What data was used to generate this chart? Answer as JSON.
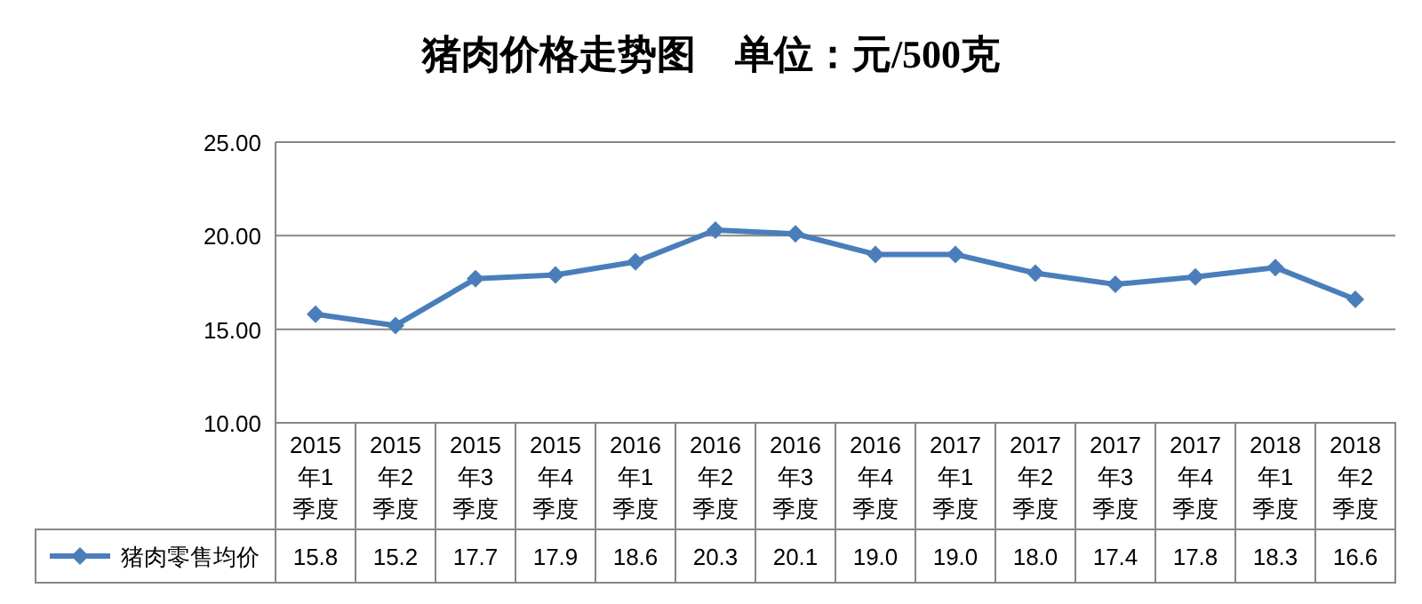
{
  "chart_data": {
    "type": "line",
    "title": "猪肉价格走势图    单位：元/500克",
    "categories": [
      "2015年1季度",
      "2015年2季度",
      "2015年3季度",
      "2015年4季度",
      "2016年1季度",
      "2016年2季度",
      "2016年3季度",
      "2016年4季度",
      "2017年1季度",
      "2017年2季度",
      "2017年3季度",
      "2017年4季度",
      "2018年1季度",
      "2018年2季度"
    ],
    "series": [
      {
        "name": "猪肉零售均价",
        "color": "#4a7ebb",
        "values": [
          15.8,
          15.2,
          17.7,
          17.9,
          18.6,
          20.3,
          20.1,
          19.0,
          19.0,
          18.0,
          17.4,
          17.8,
          18.3,
          16.6
        ],
        "value_labels": [
          "15.8",
          "15.2",
          "17.7",
          "17.9",
          "18.6",
          "20.3",
          "20.1",
          "19.0",
          "19.0",
          "18.0",
          "17.4",
          "17.8",
          "18.3",
          "16.6"
        ]
      }
    ],
    "ylim": [
      10,
      25
    ],
    "yticks": [
      {
        "value": 10,
        "label": "10.00"
      },
      {
        "value": 15,
        "label": "15.00"
      },
      {
        "value": 20,
        "label": "20.00"
      },
      {
        "value": 25,
        "label": "25.00"
      }
    ],
    "grid": "y",
    "legend": "bottom",
    "marker": "diamond",
    "line_style": "solid"
  }
}
